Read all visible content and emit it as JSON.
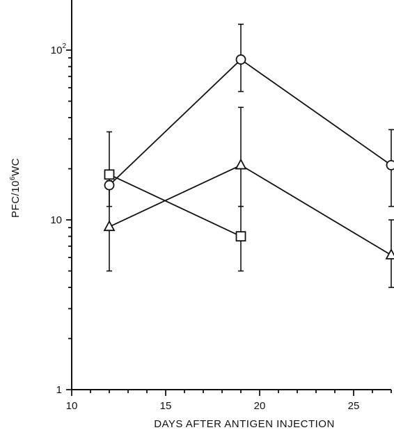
{
  "chart_data": {
    "type": "line",
    "xlabel": "DAYS AFTER ANTIGEN INJECTION",
    "ylabel_parts": {
      "base": "PFC/10",
      "exp": "6",
      "suffix": "WC"
    },
    "xlim": [
      10,
      27
    ],
    "ylim": [
      1,
      200
    ],
    "yscale": "log",
    "x_ticks": [
      {
        "value": 10,
        "label": "10"
      },
      {
        "value": 15,
        "label": "15"
      },
      {
        "value": 20,
        "label": "20"
      },
      {
        "value": 25,
        "label": "25"
      }
    ],
    "y_ticks": [
      {
        "value": 1,
        "label": "1",
        "exp": ""
      },
      {
        "value": 10,
        "label": "10",
        "exp": ""
      },
      {
        "value": 100,
        "label": "10",
        "exp": "2"
      }
    ],
    "grid": false,
    "series": [
      {
        "marker": "circle",
        "points": [
          {
            "x": 12,
            "y": 16,
            "err_low": 12,
            "err_high": 33
          },
          {
            "x": 19,
            "y": 88,
            "err_low": 57,
            "err_high": 142
          },
          {
            "x": 27,
            "y": 21,
            "err_low": 12,
            "err_high": 34
          }
        ]
      },
      {
        "marker": "triangle",
        "points": [
          {
            "x": 12,
            "y": 9.1,
            "err_low": 5,
            "err_high": 17
          },
          {
            "x": 19,
            "y": 21,
            "err_low": 12,
            "err_high": 46
          },
          {
            "x": 27,
            "y": 6.2,
            "err_low": 4,
            "err_high": 10
          }
        ]
      },
      {
        "marker": "square",
        "points": [
          {
            "x": 12,
            "y": 18.5,
            "err_low": 18.5,
            "err_high": 18.5
          },
          {
            "x": 19,
            "y": 8,
            "err_low": 5,
            "err_high": 12
          }
        ]
      }
    ]
  }
}
